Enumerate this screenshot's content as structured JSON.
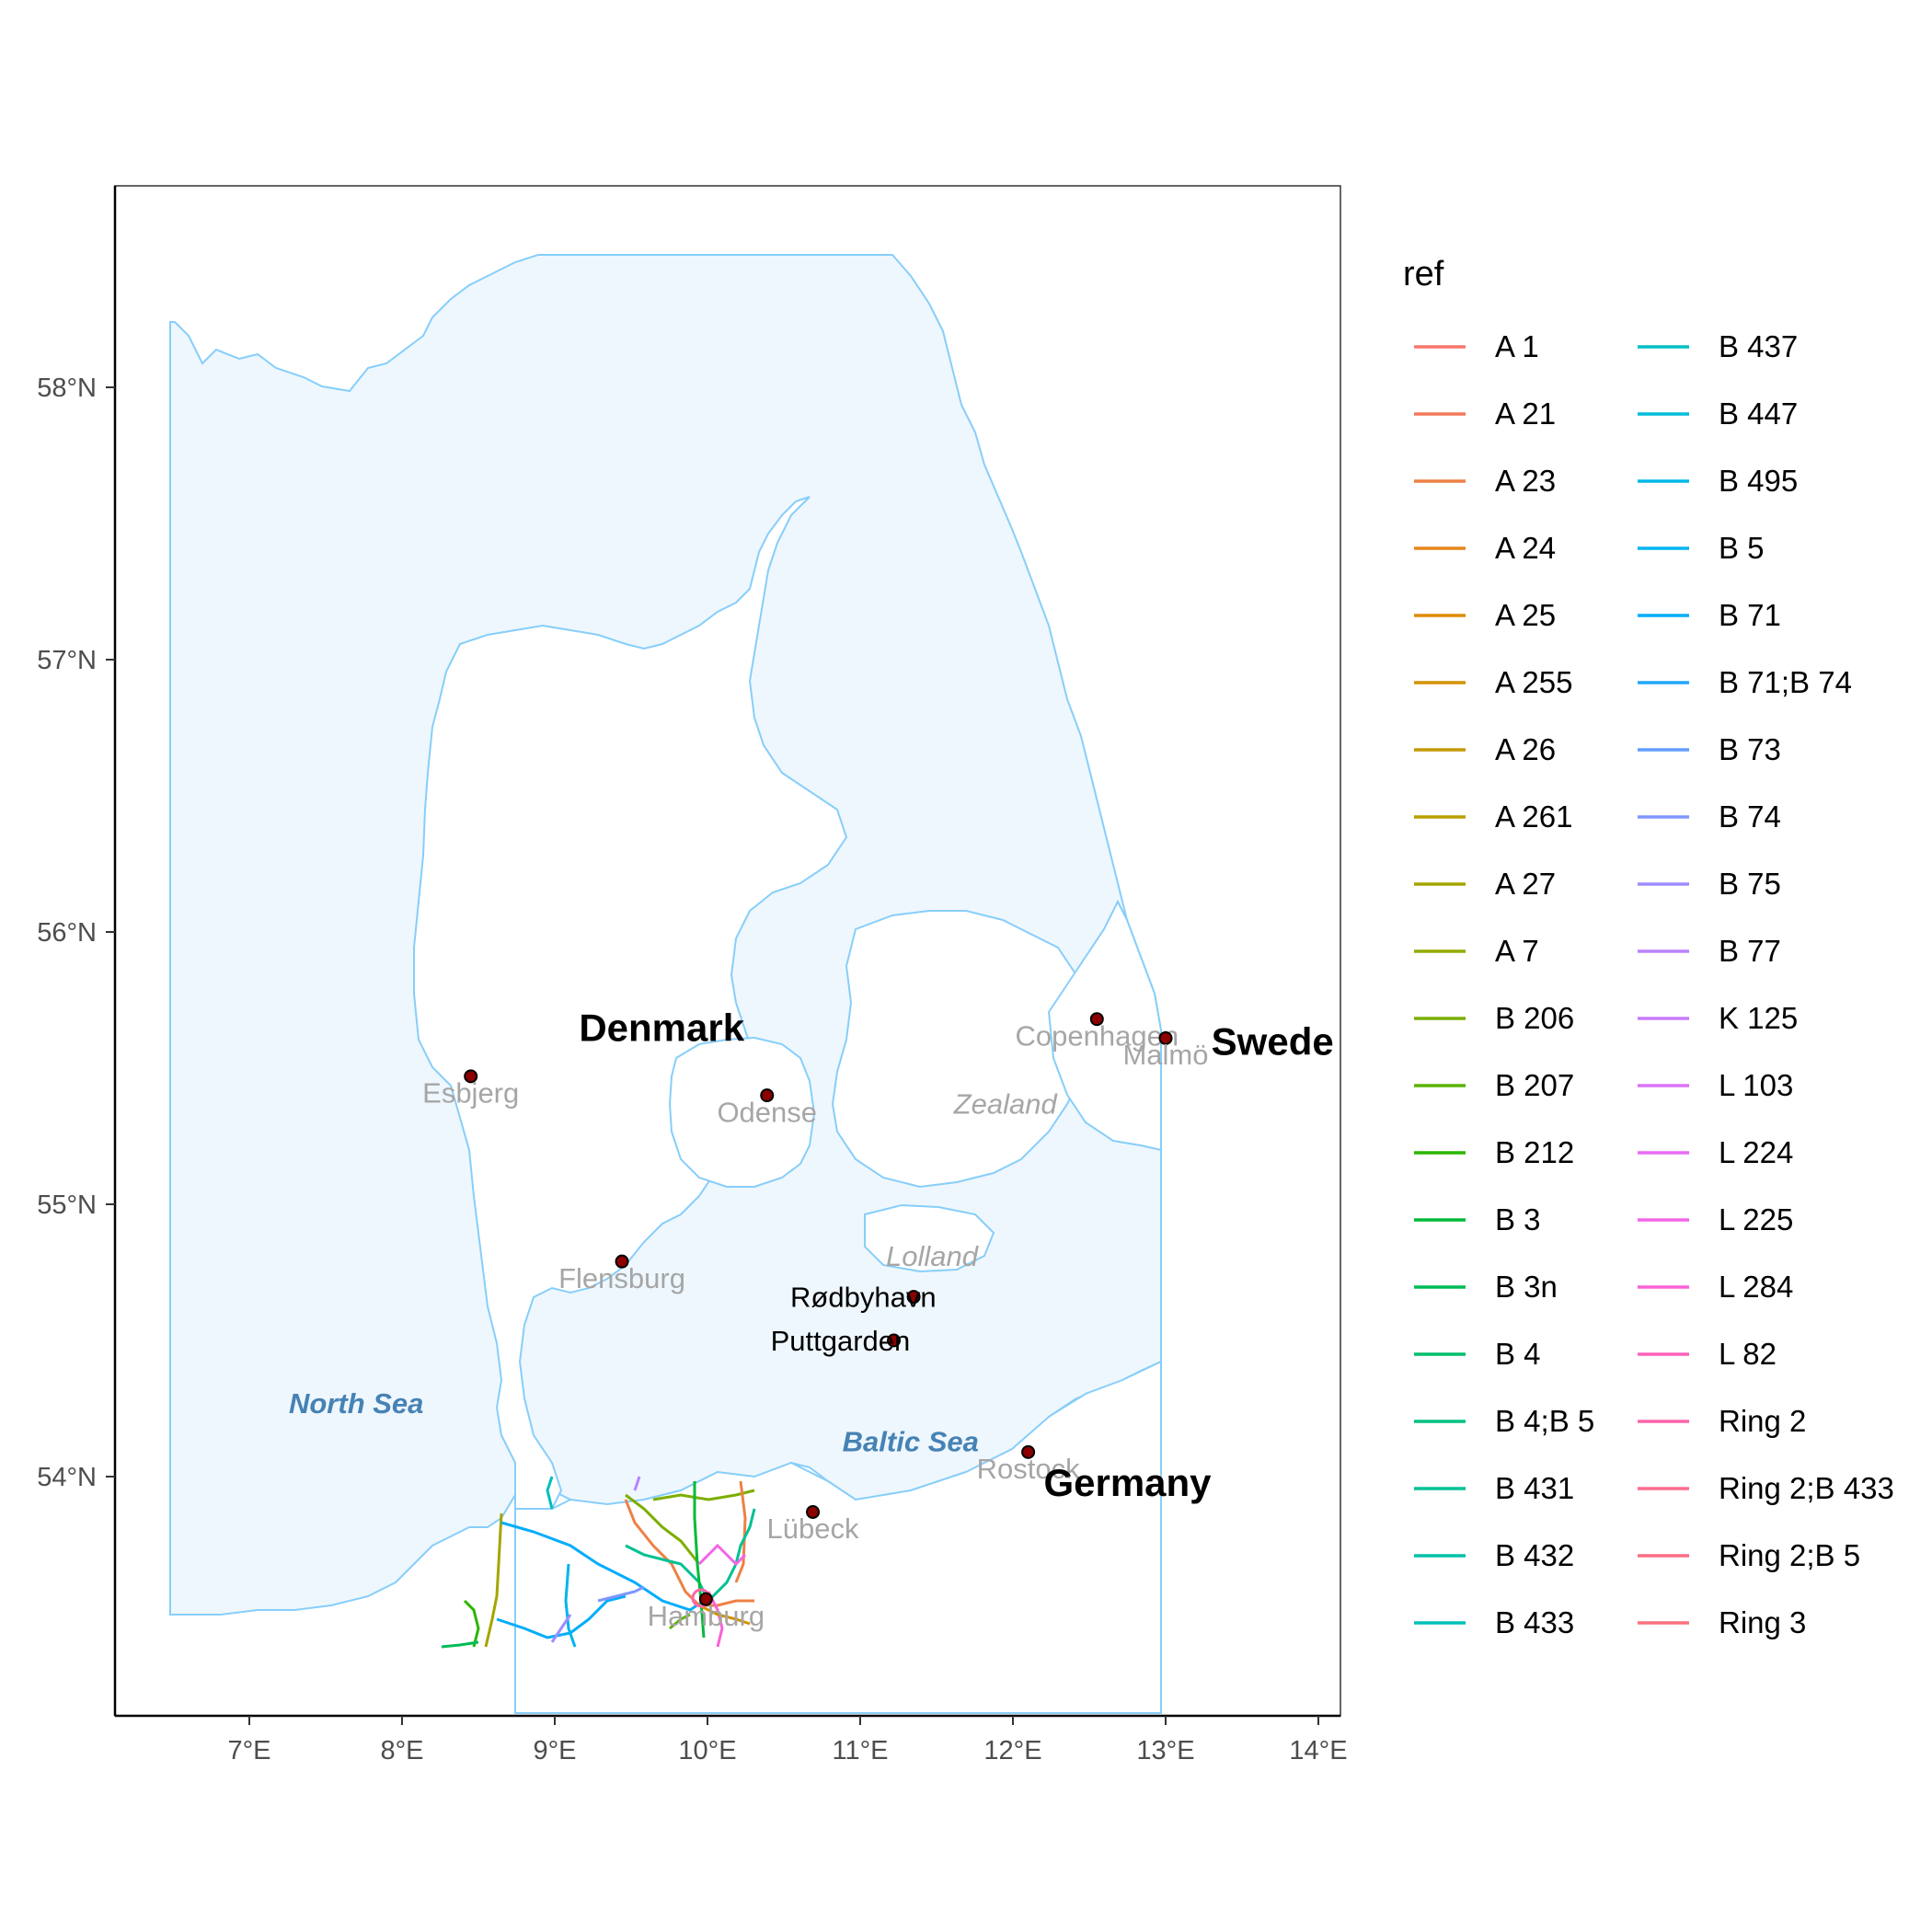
{
  "map": {
    "x_axis": {
      "ticks": [
        {
          "value": 7,
          "label": "7°E"
        },
        {
          "value": 8,
          "label": "8°E"
        },
        {
          "value": 9,
          "label": "9°E"
        },
        {
          "value": 10,
          "label": "10°E"
        },
        {
          "value": 11,
          "label": "11°E"
        },
        {
          "value": 12,
          "label": "12°E"
        },
        {
          "value": 13,
          "label": "13°E"
        },
        {
          "value": 14,
          "label": "14°E"
        }
      ]
    },
    "y_axis": {
      "ticks": [
        {
          "value": 54,
          "label": "54°N"
        },
        {
          "value": 55,
          "label": "55°N"
        },
        {
          "value": 56,
          "label": "56°N"
        },
        {
          "value": 57,
          "label": "57°N"
        },
        {
          "value": 58,
          "label": "58°N"
        }
      ]
    },
    "colors": {
      "sea_fill": "#eef7fd",
      "coastline": "#87cefa",
      "city_point": "#8b0000",
      "sea_label": "#4682b4",
      "grey_label": "#a6a6a6"
    },
    "countries": [
      {
        "name": "Denmark",
        "lon": 9.7,
        "lat": 55.65
      },
      {
        "name": "Swede",
        "lon": 13.7,
        "lat": 55.6
      },
      {
        "name": "Germany",
        "lon": 12.75,
        "lat": 53.98
      }
    ],
    "cities": [
      {
        "name": "Esbjerg",
        "lon": 8.45,
        "lat": 55.47,
        "label_color": "grey",
        "label_dy": 0.06
      },
      {
        "name": "Odense",
        "lon": 10.39,
        "lat": 55.4,
        "label_color": "grey",
        "label_dy": 0.06
      },
      {
        "name": "Copenhagen",
        "lon": 12.55,
        "lat": 55.68,
        "label_color": "grey",
        "label_dy": 0.06
      },
      {
        "name": "Malmö",
        "lon": 13.0,
        "lat": 55.61,
        "label_color": "grey",
        "label_dy": 0.06
      },
      {
        "name": "Flensburg",
        "lon": 9.44,
        "lat": 54.79,
        "label_color": "grey",
        "label_dy": 0.06
      },
      {
        "name": "Rødbyhavn",
        "lon": 11.35,
        "lat": 54.66,
        "label_color": "black",
        "label_dx": -0.33,
        "label_dy": 0.0
      },
      {
        "name": "Puttgarden",
        "lon": 11.22,
        "lat": 54.5,
        "label_color": "black",
        "label_dx": -0.35,
        "label_dy": 0.0
      },
      {
        "name": "Lübeck",
        "lon": 10.69,
        "lat": 53.87,
        "label_color": "grey",
        "label_dy": 0.06
      },
      {
        "name": "Rostock",
        "lon": 12.1,
        "lat": 54.09,
        "label_color": "grey",
        "label_dy": 0.06
      },
      {
        "name": "Hamburg",
        "lon": 9.99,
        "lat": 53.55,
        "label_color": "grey",
        "label_dy": 0.06
      }
    ],
    "regions": [
      {
        "name": "Zealand",
        "lon": 11.95,
        "lat": 55.37
      },
      {
        "name": "Lolland",
        "lon": 11.47,
        "lat": 54.81
      }
    ],
    "seas": [
      {
        "name": "North Sea",
        "lon": 7.7,
        "lat": 54.27
      },
      {
        "name": "Baltic Sea",
        "lon": 11.33,
        "lat": 54.13
      }
    ]
  },
  "legend": {
    "title": "ref",
    "entries": [
      {
        "label": "A 1",
        "color": "#f8766d"
      },
      {
        "label": "A 21",
        "color": "#f47a5a"
      },
      {
        "label": "A 23",
        "color": "#ee8044"
      },
      {
        "label": "A 24",
        "color": "#e7861b"
      },
      {
        "label": "A 25",
        "color": "#de8c00"
      },
      {
        "label": "A 255",
        "color": "#d39200"
      },
      {
        "label": "A 26",
        "color": "#c59900"
      },
      {
        "label": "A 261",
        "color": "#b79f00"
      },
      {
        "label": "A 27",
        "color": "#a5a500"
      },
      {
        "label": "A 7",
        "color": "#93aa00"
      },
      {
        "label": "B 206",
        "color": "#7cae00"
      },
      {
        "label": "B 207",
        "color": "#5bb300"
      },
      {
        "label": "B 212",
        "color": "#2bb600"
      },
      {
        "label": "B 3",
        "color": "#00ba38"
      },
      {
        "label": "B 3n",
        "color": "#00bc56"
      },
      {
        "label": "B 4",
        "color": "#00be6c"
      },
      {
        "label": "B 4;B 5",
        "color": "#00c081"
      },
      {
        "label": "B 431",
        "color": "#00c094"
      },
      {
        "label": "B 432",
        "color": "#00c1a7"
      },
      {
        "label": "B 433",
        "color": "#00bfb9"
      },
      {
        "label": "B 437",
        "color": "#00bfc4"
      },
      {
        "label": "B 447",
        "color": "#00bcd8"
      },
      {
        "label": "B 495",
        "color": "#00b8e7"
      },
      {
        "label": "B 5",
        "color": "#00b4f0"
      },
      {
        "label": "B 71",
        "color": "#00adfa"
      },
      {
        "label": "B 71;B 74",
        "color": "#22a6ff"
      },
      {
        "label": "B 73",
        "color": "#619cff"
      },
      {
        "label": "B 74",
        "color": "#7f96ff"
      },
      {
        "label": "B 75",
        "color": "#9d8eff"
      },
      {
        "label": "B 77",
        "color": "#b983ff"
      },
      {
        "label": "K 125",
        "color": "#c77cff"
      },
      {
        "label": "L 103",
        "color": "#db72fb"
      },
      {
        "label": "L 224",
        "color": "#e86bf3"
      },
      {
        "label": "L 225",
        "color": "#f365e6"
      },
      {
        "label": "L 284",
        "color": "#fb61d7"
      },
      {
        "label": "L 82",
        "color": "#ff62bc"
      },
      {
        "label": "Ring 2",
        "color": "#ff65ab"
      },
      {
        "label": "Ring 2;B 433",
        "color": "#ff6c90"
      },
      {
        "label": "Ring 2;B 5",
        "color": "#fe6c86"
      },
      {
        "label": "Ring 3",
        "color": "#fc717f"
      }
    ]
  }
}
